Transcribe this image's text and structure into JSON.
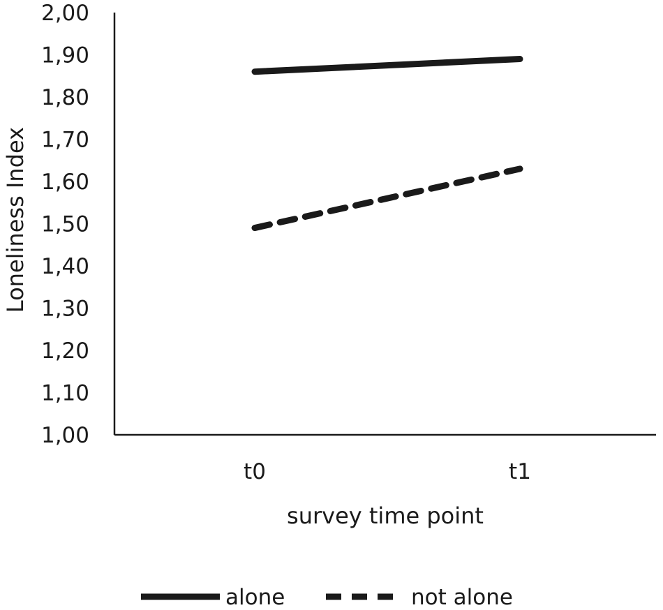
{
  "chart_data": {
    "type": "line",
    "title": "",
    "xlabel": "survey time point",
    "ylabel": "Loneliness Index",
    "categories": [
      "t0",
      "t1"
    ],
    "ylim": [
      1.0,
      2.0
    ],
    "yticks": [
      "1,00",
      "1,10",
      "1,20",
      "1,30",
      "1,40",
      "1,50",
      "1,60",
      "1,70",
      "1,80",
      "1,90",
      "2,00"
    ],
    "grid": false,
    "legend_position": "bottom",
    "series": [
      {
        "name": "alone",
        "values": [
          1.86,
          1.89
        ],
        "style": "solid",
        "color": "#1a1a1a"
      },
      {
        "name": "not alone",
        "values": [
          1.49,
          1.63
        ],
        "style": "dashed",
        "color": "#1a1a1a"
      }
    ]
  }
}
